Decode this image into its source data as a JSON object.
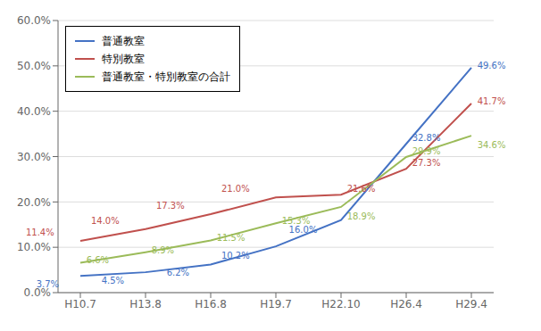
{
  "chart_data": {
    "type": "line",
    "categories": [
      "H10.7",
      "H13.8",
      "H16.8",
      "H19.7",
      "H22.10",
      "H26.4",
      "H29.4"
    ],
    "series": [
      {
        "name": "普通教室",
        "color": "#4472C4",
        "values": [
          3.7,
          4.5,
          6.2,
          10.2,
          16.0,
          32.8,
          49.6
        ],
        "value_labels": [
          "3.7%",
          "4.5%",
          "6.2%",
          "10.2%",
          "16.0%",
          "32.8%",
          "49.6%"
        ]
      },
      {
        "name": "特別教室",
        "color": "#C0504D",
        "values": [
          11.4,
          14.0,
          17.3,
          21.0,
          21.6,
          27.3,
          41.7
        ],
        "value_labels": [
          "11.4%",
          "14.0%",
          "17.3%",
          "21.0%",
          "21.6%",
          "27.3%",
          "41.7%"
        ]
      },
      {
        "name": "普通教室・特別教室の合計",
        "color": "#9BBB59",
        "values": [
          6.6,
          8.9,
          11.5,
          15.3,
          18.9,
          29.9,
          34.6
        ],
        "value_labels": [
          "6.6%",
          "8.9%",
          "11.5%",
          "15.3%",
          "18.9%",
          "29.9%",
          "34.6%"
        ]
      }
    ],
    "ylim": [
      0.0,
      60.0
    ],
    "yticks": [
      {
        "value": 0.0,
        "label": "0.0%"
      },
      {
        "value": 10.0,
        "label": "10.0%"
      },
      {
        "value": 20.0,
        "label": "20.0%"
      },
      {
        "value": 30.0,
        "label": "30.0%"
      },
      {
        "value": 40.0,
        "label": "40.0%"
      },
      {
        "value": 50.0,
        "label": "50.0%"
      },
      {
        "value": 60.0,
        "label": "60.0%"
      }
    ],
    "grid": true,
    "legend": "upper left",
    "data_labels": true
  }
}
